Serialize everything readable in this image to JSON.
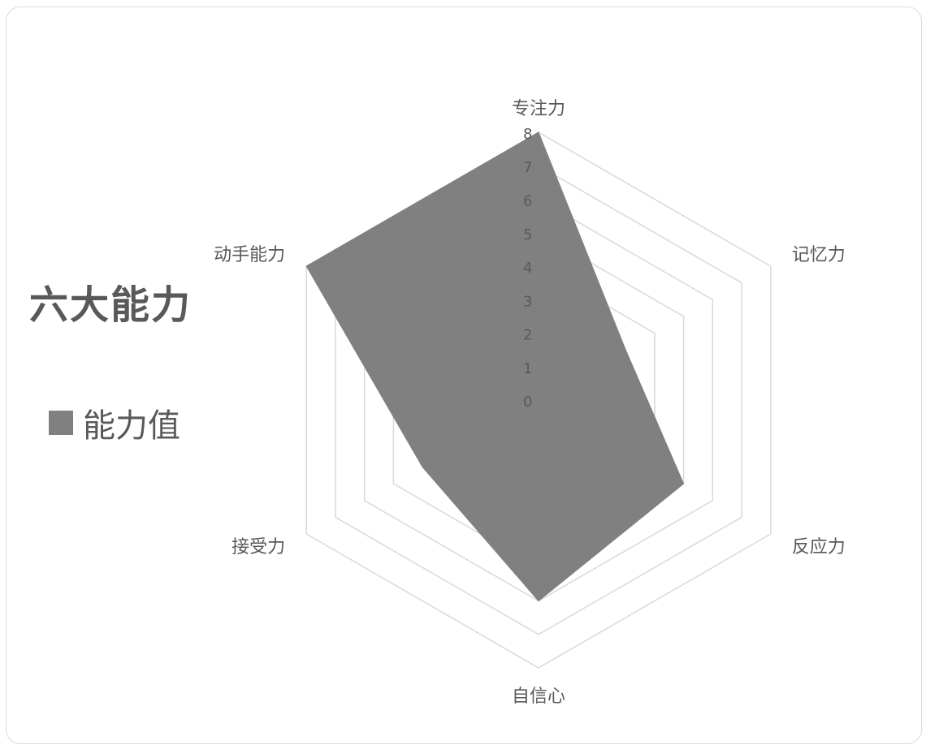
{
  "chart_data": {
    "type": "radar",
    "title": "六大能力",
    "legend_position": "left",
    "grid": true,
    "rlim": [
      0,
      8
    ],
    "ticks": [
      "0",
      "1",
      "2",
      "3",
      "4",
      "5",
      "6",
      "7",
      "8"
    ],
    "categories": [
      "专注力",
      "记忆力",
      "反应力",
      "自信心",
      "接受力",
      "动手能力"
    ],
    "series": [
      {
        "name": "能力值",
        "values": [
          8,
          3,
          5,
          6,
          4,
          8
        ],
        "color": "#808080"
      }
    ],
    "colors": {
      "grid": "#d9d9d9",
      "text": "#595959",
      "fill": "#808080"
    }
  }
}
